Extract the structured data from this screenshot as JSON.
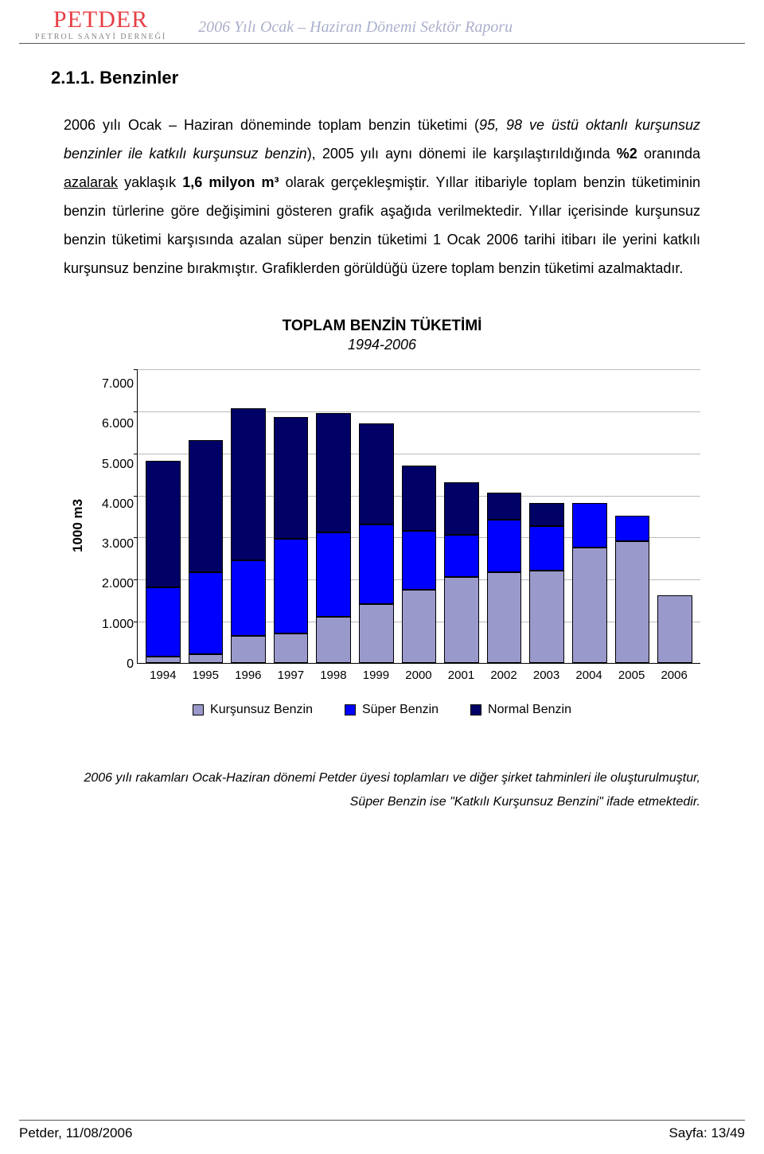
{
  "header": {
    "logo_main": "PETDER",
    "logo_sub": "PETROL SANAYİ DERNEĞİ",
    "title": "2006 Yılı Ocak – Haziran Dönemi Sektör Raporu"
  },
  "section": {
    "number": "2.1.1. Benzinler"
  },
  "body": {
    "p1_a": "2006 yılı Ocak – Haziran döneminde toplam benzin tüketimi (",
    "p1_italic1": "95, 98 ve üstü oktanlı kurşunsuz benzinler ile katkılı kurşunsuz benzin",
    "p1_b": "), 2005 yılı aynı dönemi ile karşılaştırıldığında ",
    "p1_bold1": "%2",
    "p1_c": " oranında ",
    "p1_under": "azalarak",
    "p1_d": " yaklaşık ",
    "p1_bold2": "1,6 milyon m³",
    "p1_e": " olarak gerçekleşmiştir. Yıllar itibariyle toplam benzin tüketiminin benzin türlerine göre değişimini gösteren grafik aşağıda verilmektedir. Yıllar içerisinde kurşunsuz benzin tüketimi karşısında azalan süper benzin tüketimi 1 Ocak 2006 tarihi itibarı ile yerini katkılı kurşunsuz benzine bırakmıştır. Grafiklerden görüldüğü üzere toplam benzin tüketimi azalmaktadır."
  },
  "chart": {
    "title": "TOPLAM BENZİN TÜKETİMİ",
    "subtitle": "1994-2006",
    "ylabel": "1000 m3",
    "ymax": 7000,
    "ytick_labels": [
      "7.000",
      "6.000",
      "5.000",
      "4.000",
      "3.000",
      "2.000",
      "1.000",
      "0"
    ],
    "categories": [
      "1994",
      "1995",
      "1996",
      "1997",
      "1998",
      "1999",
      "2000",
      "2001",
      "2002",
      "2003",
      "2004",
      "2005",
      "2006"
    ],
    "series": {
      "kursunsuz": {
        "label": "Kurşunsuz Benzin",
        "color": "#9999cc"
      },
      "super": {
        "label": "Süper Benzin",
        "color": "#0000ff"
      },
      "normal": {
        "label": "Normal Benzin",
        "color": "#000066"
      }
    },
    "data": [
      {
        "kursunsuz": 150,
        "super": 1650,
        "normal": 3000
      },
      {
        "kursunsuz": 200,
        "super": 1950,
        "normal": 3150
      },
      {
        "kursunsuz": 650,
        "super": 1800,
        "normal": 3600
      },
      {
        "kursunsuz": 700,
        "super": 2250,
        "normal": 2900
      },
      {
        "kursunsuz": 1100,
        "super": 2000,
        "normal": 2850
      },
      {
        "kursunsuz": 1400,
        "super": 1900,
        "normal": 2400
      },
      {
        "kursunsuz": 1750,
        "super": 1400,
        "normal": 1550
      },
      {
        "kursunsuz": 2050,
        "super": 1000,
        "normal": 1250
      },
      {
        "kursunsuz": 2150,
        "super": 1250,
        "normal": 650
      },
      {
        "kursunsuz": 2200,
        "super": 1050,
        "normal": 550
      },
      {
        "kursunsuz": 2750,
        "super": 1050,
        "normal": 0
      },
      {
        "kursunsuz": 2900,
        "super": 600,
        "normal": 0
      },
      {
        "kursunsuz": 1600,
        "super": 0,
        "normal": 0
      }
    ]
  },
  "footnote": {
    "line1": "2006 yılı rakamları Ocak-Haziran dönemi Petder üyesi toplamları ve diğer şirket tahminleri ile oluşturulmuştur,",
    "line2": "Süper Benzin ise \"Katkılı Kurşunsuz Benzini\" ifade etmektedir."
  },
  "footer": {
    "left": "Petder, 11/08/2006",
    "right": "Sayfa:  13/49"
  }
}
